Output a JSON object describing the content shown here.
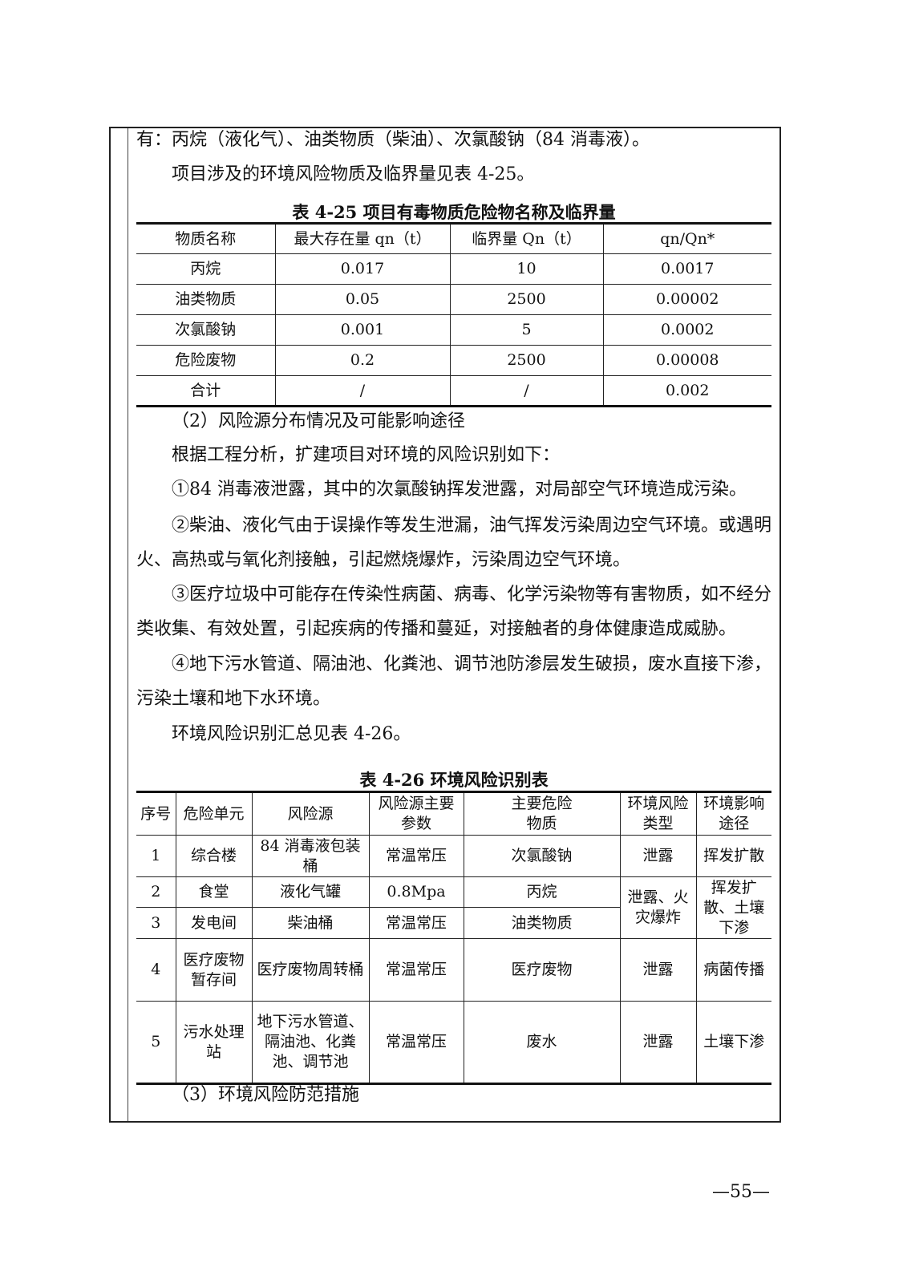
{
  "paragraphs": {
    "p1": "有：丙烷（液化气）、油类物质（柴油）、次氯酸钠（84 消毒液）。",
    "p2": "项目涉及的环境风险物质及临界量见表 4-25。",
    "p3": "（2）风险源分布情况及可能影响途径",
    "p4": "根据工程分析，扩建项目对环境的风险识别如下：",
    "p5": "①84 消毒液泄露，其中的次氯酸钠挥发泄露，对局部空气环境造成污染。",
    "p6": "②柴油、液化气由于误操作等发生泄漏，油气挥发污染周边空气环境。或遇明火、高热或与氧化剂接触，引起燃烧爆炸，污染周边空气环境。",
    "p7": "③医疗垃圾中可能存在传染性病菌、病毒、化学污染物等有害物质，如不经分类收集、有效处置，引起疾病的传播和蔓延，对接触者的身体健康造成威胁。",
    "p8": "④地下污水管道、隔油池、化粪池、调节池防渗层发生破损，废水直接下渗，污染土壤和地下水环境。",
    "p9": "环境风险识别汇总见表 4-26。",
    "p10": "（3）环境风险防范措施"
  },
  "table1": {
    "caption": "表 4-25 项目有毒物质危险物名称及临界量",
    "headers": [
      "物质名称",
      "最大存在量 qn（t）",
      "临界量 Qn（t）",
      "qn/Qn*"
    ],
    "rows": [
      [
        "丙烷",
        "0.017",
        "10",
        "0.0017"
      ],
      [
        "油类物质",
        "0.05",
        "2500",
        "0.00002"
      ],
      [
        "次氯酸钠",
        "0.001",
        "5",
        "0.0002"
      ],
      [
        "危险废物",
        "0.2",
        "2500",
        "0.00008"
      ],
      [
        "合计",
        "/",
        "/",
        "0.002"
      ]
    ]
  },
  "table2": {
    "caption": "表 4-26 环境风险识别表",
    "headers": [
      "序号",
      "危险单元",
      "风险源",
      "风险源主要参数",
      "主要危险物质",
      "环境风险类型",
      "环境影响途径"
    ],
    "rows": [
      [
        "1",
        "综合楼",
        "84 消毒液包装桶",
        "常温常压",
        "次氯酸钠",
        "泄露",
        "挥发扩散"
      ],
      [
        "2",
        "食堂",
        "液化气罐",
        "0.8Mpa",
        "丙烷",
        "泄露、火灾爆炸",
        "挥发扩散、土壤下渗"
      ],
      [
        "3",
        "发电间",
        "柴油桶",
        "常温常压",
        "油类物质"
      ],
      [
        "4",
        "医疗废物暂存间",
        "医疗废物周转桶",
        "常温常压",
        "医疗废物",
        "泄露",
        "病菌传播"
      ],
      [
        "5",
        "污水处理站",
        "地下污水管道、隔油池、化粪池、调节池",
        "常温常压",
        "废水",
        "泄露",
        "土壤下渗"
      ]
    ]
  },
  "page_number": "—55—"
}
